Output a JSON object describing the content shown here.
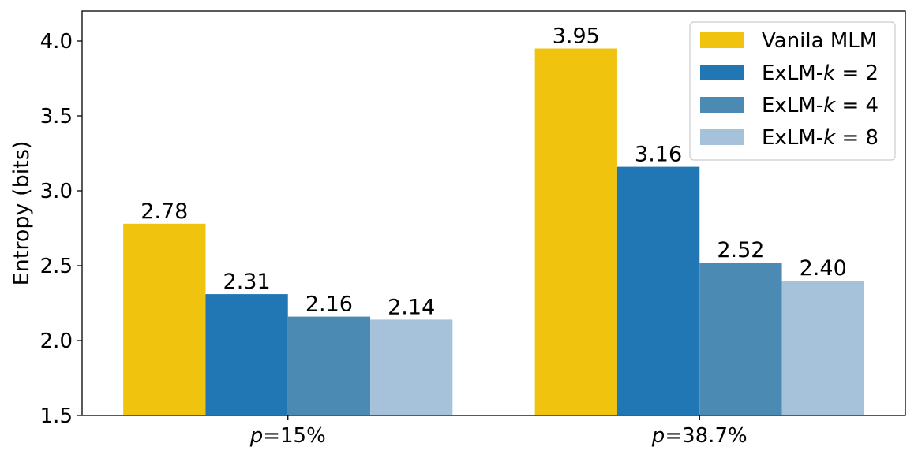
{
  "chart_data": {
    "type": "bar",
    "title": "",
    "xlabel": "",
    "ylabel": "Entropy (bits)",
    "ylim": [
      1.5,
      4.2
    ],
    "yticks": [
      "1.5",
      "2.0",
      "2.5",
      "3.0",
      "3.5",
      "4.0"
    ],
    "ytick_values": [
      1.5,
      2.0,
      2.5,
      3.0,
      3.5,
      4.0
    ],
    "categories": [
      {
        "prefix": "p",
        "suffix": "=15%"
      },
      {
        "prefix": "p",
        "suffix": "=38.7%"
      }
    ],
    "series": [
      {
        "name": "Vanila MLM",
        "color": "#f0c30f",
        "values": [
          2.78,
          3.95
        ],
        "labels": [
          "2.78",
          "3.95"
        ]
      },
      {
        "name": "ExLM-k = 2",
        "color": "#2077b4",
        "values": [
          2.31,
          3.16
        ],
        "labels": [
          "2.31",
          "3.16"
        ]
      },
      {
        "name": "ExLM-k = 4",
        "color": "#4b8ab3",
        "values": [
          2.16,
          2.52
        ],
        "labels": [
          "2.16",
          "2.52"
        ]
      },
      {
        "name": "ExLM-k = 8",
        "color": "#a5c2da",
        "values": [
          2.14,
          2.4
        ],
        "labels": [
          "2.14",
          "2.40"
        ]
      }
    ],
    "legend": {
      "position": "top-right",
      "entries": [
        {
          "text": "Vanila MLM"
        },
        {
          "prefix": "ExLM-",
          "var": "k",
          "suffix": " = 2"
        },
        {
          "prefix": "ExLM-",
          "var": "k",
          "suffix": " = 4"
        },
        {
          "prefix": "ExLM-",
          "var": "k",
          "suffix": " = 8"
        }
      ]
    },
    "grid": false
  }
}
